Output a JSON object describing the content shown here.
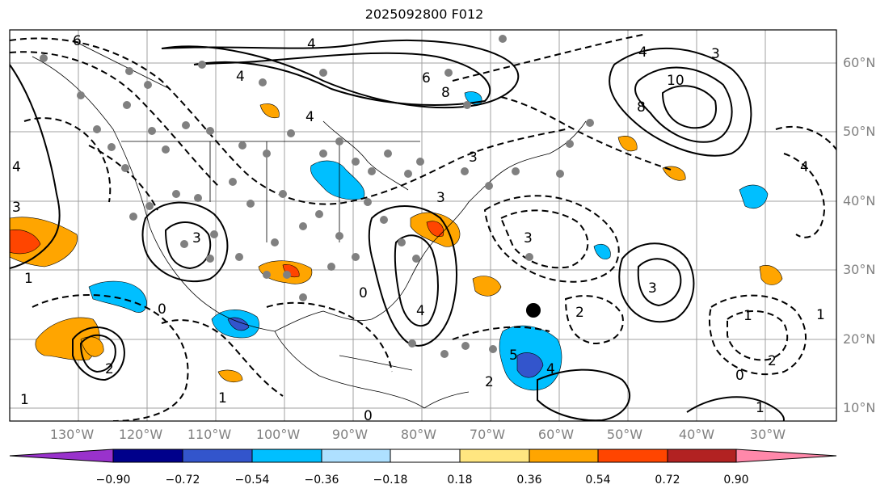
{
  "title": "2025092800 F012",
  "latitude_labels": [
    "60°N",
    "50°N",
    "40°N",
    "30°N",
    "20°N",
    "10°N"
  ],
  "longitude_labels": [
    "130°W",
    "120°W",
    "110°W",
    "100°W",
    "90°W",
    "80°W",
    "70°W",
    "60°W",
    "50°W",
    "40°W",
    "30°W"
  ],
  "colorbar": {
    "tick_labels": [
      "−0.90",
      "−0.72",
      "−0.54",
      "−0.36",
      "−0.18",
      "0.18",
      "0.36",
      "0.54",
      "0.72",
      "0.90"
    ],
    "colors": [
      "#9932cc",
      "#00008b",
      "#3355cc",
      "#00bfff",
      "#aee0ff",
      "#ffffff",
      "#ffe680",
      "#ffa500",
      "#ff4500",
      "#b22222",
      "#ff88aa"
    ]
  },
  "contour_labels": [
    "6",
    "4",
    "4",
    "6",
    "8",
    "4",
    "10",
    "8",
    "4",
    "3",
    "3",
    "3",
    "4",
    "1",
    "3",
    "2",
    "0",
    "2",
    "4",
    "0",
    "1",
    "5",
    "4",
    "3",
    "2",
    "1",
    "1",
    "0",
    "4",
    "1",
    "2",
    "3",
    "3",
    "0",
    "1"
  ],
  "map_marks": {
    "station_dot": "grey observation markers",
    "storm_marker": "black filled circle"
  }
}
